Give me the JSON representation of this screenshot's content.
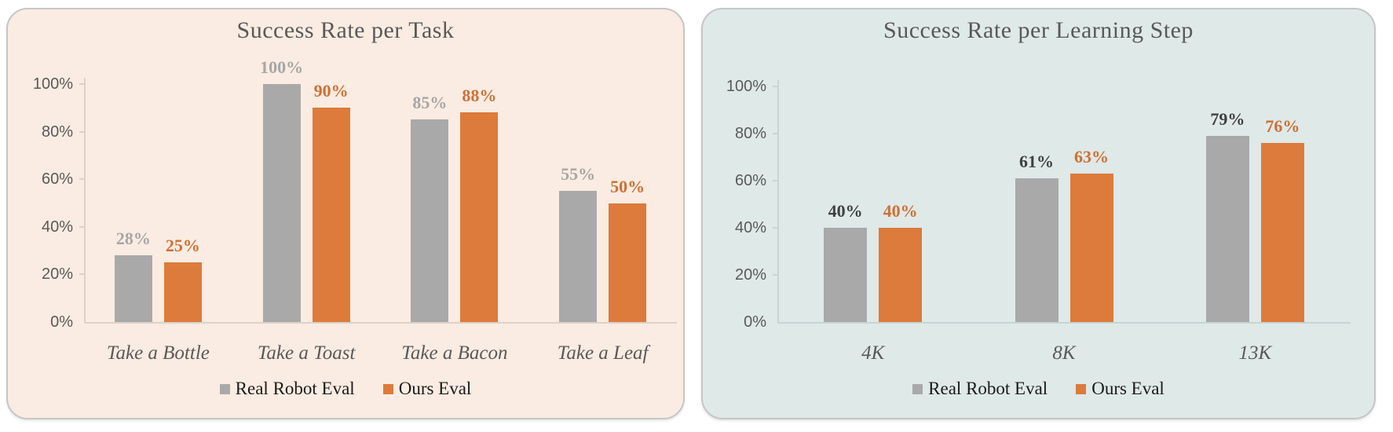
{
  "figure": {
    "background": "#ffffff"
  },
  "chart_data": [
    {
      "type": "bar",
      "title": "Success Rate per Task",
      "title_color": "#595959",
      "panel_bg": "#faece2",
      "panel_border": "#c6c6c6",
      "axis_color": "#ddd2c8",
      "tick_text_color": "#595959",
      "category_text_color": "#595959",
      "legend_text_color": "#1a1a1a",
      "legend_position": "bottom",
      "grid": false,
      "ylim": [
        0,
        100
      ],
      "yticks": [
        "0%",
        "20%",
        "40%",
        "60%",
        "80%",
        "100%"
      ],
      "xlabel": "",
      "ylabel": "",
      "categories": [
        "Take a Bottle",
        "Take a Toast",
        "Take a Bacon",
        "Take a Leaf"
      ],
      "series": [
        {
          "name": "Real Robot Eval",
          "color": "#a9a9a9",
          "label_color": "#a6a6a6",
          "values": [
            28,
            100,
            85,
            55
          ],
          "labels": [
            "28%",
            "100%",
            "85%",
            "55%"
          ]
        },
        {
          "name": "Ours Eval",
          "color": "#dc7b3c",
          "label_color": "#d06f33",
          "values": [
            25,
            90,
            88,
            50
          ],
          "labels": [
            "25%",
            "90%",
            "88%",
            "50%"
          ]
        }
      ]
    },
    {
      "type": "bar",
      "title": "Success Rate per Learning Step",
      "title_color": "#595959",
      "panel_bg": "#dfe9e8",
      "panel_border": "#c6c6c6",
      "axis_color": "#c8d5d3",
      "tick_text_color": "#595959",
      "category_text_color": "#595959",
      "legend_text_color": "#1a1a1a",
      "legend_position": "bottom",
      "grid": false,
      "ylim": [
        0,
        100
      ],
      "yticks": [
        "0%",
        "20%",
        "40%",
        "60%",
        "80%",
        "100%"
      ],
      "xlabel": "",
      "ylabel": "",
      "categories": [
        "4K",
        "8K",
        "13K"
      ],
      "series": [
        {
          "name": "Real Robot Eval",
          "color": "#a9a9a9",
          "label_color": "#404040",
          "values": [
            40,
            61,
            79
          ],
          "labels": [
            "40%",
            "61%",
            "79%"
          ]
        },
        {
          "name": "Ours Eval",
          "color": "#dc7b3c",
          "label_color": "#d06f33",
          "values": [
            40,
            63,
            76
          ],
          "labels": [
            "40%",
            "63%",
            "76%"
          ]
        }
      ]
    }
  ]
}
